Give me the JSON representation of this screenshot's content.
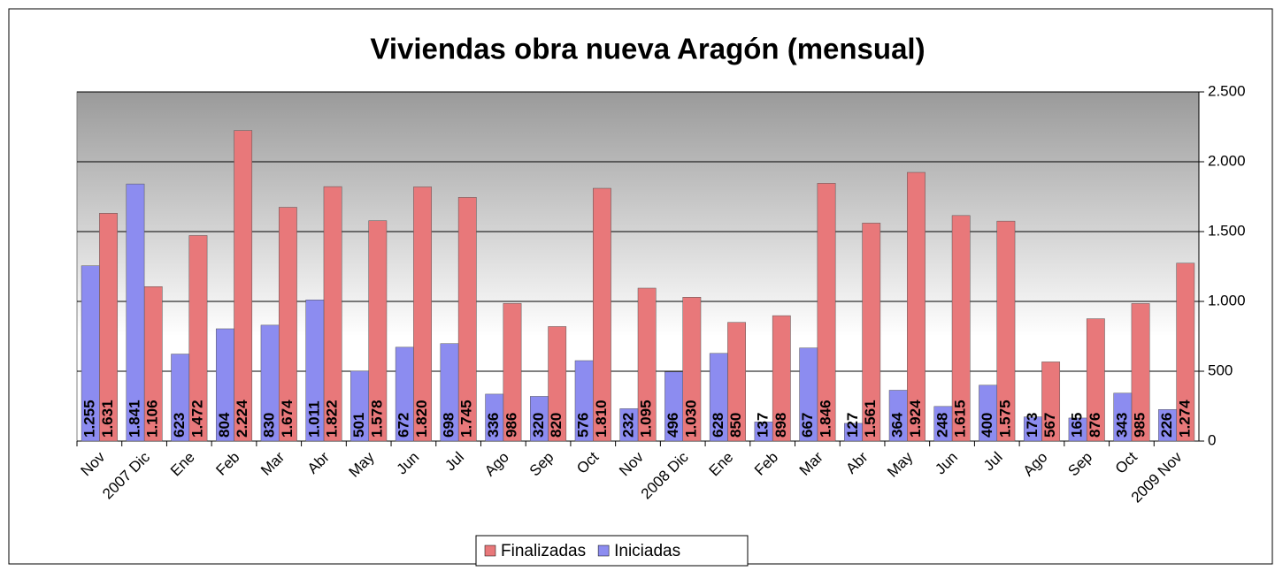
{
  "chart_data": {
    "type": "bar",
    "title": "Viviendas obra nueva Aragón (mensual)",
    "categories": [
      "Nov",
      "2007 Dic",
      "Ene",
      "Feb",
      "Mar",
      "Abr",
      "May",
      "Jun",
      "Jul",
      "Ago",
      "Sep",
      "Oct",
      "Nov",
      "2008 Dic",
      "Ene",
      "Feb",
      "Mar",
      "Abr",
      "May",
      "Jun",
      "Jul",
      "Ago",
      "Sep",
      "Oct",
      "2009 Nov"
    ],
    "series": [
      {
        "name": "Finalizadas",
        "color": "#e8787a",
        "values": [
          1631,
          1106,
          1472,
          2224,
          1674,
          1822,
          1578,
          1820,
          1745,
          986,
          820,
          1810,
          1095,
          1030,
          850,
          898,
          1846,
          1561,
          1924,
          1615,
          1575,
          567,
          876,
          985,
          1274
        ],
        "value_labels": [
          "1.631",
          "1.106",
          "1.472",
          "2.224",
          "1.674",
          "1.822",
          "1.578",
          "1.820",
          "1.745",
          "986",
          "820",
          "1.810",
          "1.095",
          "1.030",
          "850",
          "898",
          "1.846",
          "1.561",
          "1.924",
          "1.615",
          "1.575",
          "567",
          "876",
          "985",
          "1.274"
        ]
      },
      {
        "name": "Iniciadas",
        "color": "#8c8cf0",
        "values": [
          1255,
          1841,
          623,
          804,
          830,
          1011,
          501,
          672,
          698,
          336,
          320,
          576,
          232,
          496,
          628,
          137,
          667,
          127,
          364,
          248,
          400,
          173,
          165,
          343,
          226
        ],
        "value_labels": [
          "1.255",
          "1.841",
          "623",
          "804",
          "830",
          "1.011",
          "501",
          "672",
          "698",
          "336",
          "320",
          "576",
          "232",
          "496",
          "628",
          "137",
          "667",
          "127",
          "364",
          "248",
          "400",
          "173",
          "165",
          "343",
          "226"
        ]
      }
    ],
    "ylim": [
      0,
      2500
    ],
    "yticks": [
      0,
      500,
      {
        "value": 1000,
        "label": "1.000"
      },
      {
        "value": 1500,
        "label": "1.500"
      },
      {
        "value": 2000,
        "label": "2.000"
      },
      {
        "value": 2500,
        "label": "2.500"
      }
    ],
    "grid": true,
    "y_axis_side": "right",
    "legend": "bottom"
  }
}
